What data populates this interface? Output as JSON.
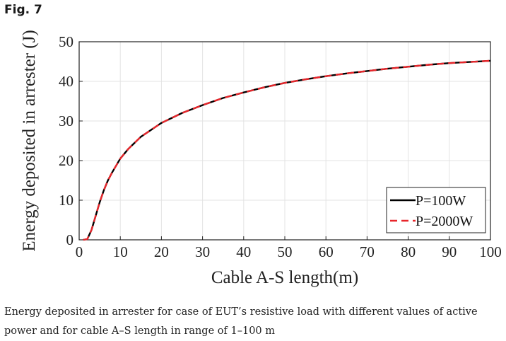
{
  "figure": {
    "label": "Fig. 7",
    "caption": "Energy deposited in arrester for case of EUT’s resistive load with different values of active power and for cable A–S length in range of 1–100 m"
  },
  "chart_data": {
    "type": "line",
    "title": "",
    "xlabel": "Cable A-S length(m)",
    "ylabel": "Energy deposited in arrester (J)",
    "xlim": [
      0,
      100
    ],
    "ylim": [
      0,
      50
    ],
    "xticks": [
      0,
      10,
      20,
      30,
      40,
      50,
      60,
      70,
      80,
      90,
      100
    ],
    "yticks": [
      0,
      10,
      20,
      30,
      40,
      50
    ],
    "grid": true,
    "legend_position": "bottom-right",
    "series": [
      {
        "name": "P=100W",
        "color": "#000000",
        "style": "solid",
        "x": [
          1,
          2,
          3,
          4,
          5,
          6,
          7,
          8,
          10,
          12,
          15,
          20,
          25,
          30,
          35,
          40,
          45,
          50,
          55,
          60,
          65,
          70,
          75,
          80,
          85,
          90,
          95,
          100
        ],
        "y": [
          0,
          0.2,
          2.5,
          6,
          9.5,
          12.5,
          15,
          17,
          20.5,
          23,
          26,
          29.5,
          32,
          34,
          35.8,
          37.2,
          38.5,
          39.6,
          40.5,
          41.3,
          42.0,
          42.6,
          43.2,
          43.7,
          44.2,
          44.6,
          44.9,
          45.2
        ]
      },
      {
        "name": "P=2000W",
        "color": "#e8262b",
        "style": "dashed",
        "x": [
          1,
          2,
          3,
          4,
          5,
          6,
          7,
          8,
          10,
          12,
          15,
          20,
          25,
          30,
          35,
          40,
          45,
          50,
          55,
          60,
          65,
          70,
          75,
          80,
          85,
          90,
          95,
          100
        ],
        "y": [
          0,
          0.2,
          2.5,
          6,
          9.5,
          12.5,
          15,
          17,
          20.5,
          23,
          26,
          29.5,
          32,
          34,
          35.8,
          37.2,
          38.5,
          39.6,
          40.5,
          41.3,
          42.0,
          42.6,
          43.2,
          43.7,
          44.2,
          44.6,
          44.9,
          45.2
        ]
      }
    ]
  }
}
